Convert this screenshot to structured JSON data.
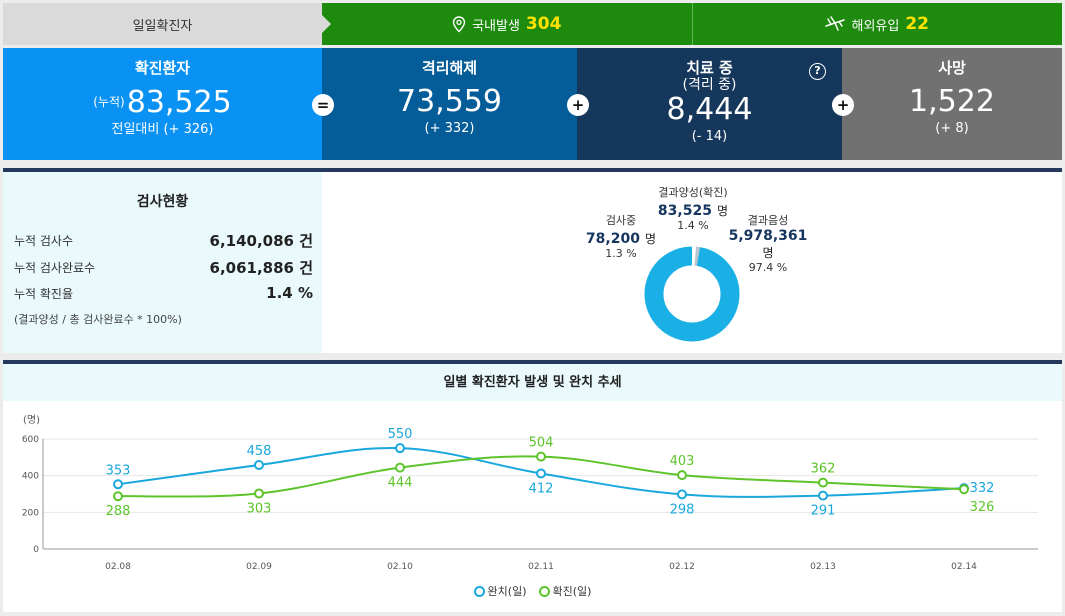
{
  "top": {
    "daily_label": "일일확진자",
    "domestic_label": "국내발생",
    "domestic_value": "304",
    "overseas_label": "해외유입",
    "overseas_value": "22"
  },
  "summary": {
    "confirmed": {
      "title": "확진환자",
      "prefix": "(누적)",
      "value": "83,525",
      "diff": "전일대비 (+ 326)"
    },
    "released": {
      "title": "격리해제",
      "value": "73,559",
      "diff": "(+ 332)"
    },
    "treating": {
      "title": "치료 중",
      "subtitle": "(격리 중)",
      "value": "8,444",
      "diff": "(- 14)"
    },
    "deaths": {
      "title": "사망",
      "value": "1,522",
      "diff": "(+ 8)"
    },
    "op_equals": "=",
    "op_plus": "+",
    "help_glyph": "?"
  },
  "tests": {
    "title": "검사현황",
    "rows": [
      {
        "label": "누적 검사수",
        "value": "6,140,086 건"
      },
      {
        "label": "누적 검사완료수",
        "value": "6,061,886 건"
      },
      {
        "label": "누적 확진율",
        "value": "1.4 %"
      }
    ],
    "note": "(결과양성 / 총 검사완료수 * 100%)",
    "donut": {
      "positive": {
        "label": "결과양성(확진)",
        "value": "83,525",
        "unit": "명",
        "pct": "1.4 %"
      },
      "testing": {
        "label": "검사중",
        "value": "78,200",
        "unit": "명",
        "pct": "1.3 %"
      },
      "negative": {
        "label": "결과음성",
        "value": "5,978,361",
        "unit": "명",
        "pct": "97.4 %"
      },
      "fractions": [
        0.014,
        0.013,
        0.973
      ]
    }
  },
  "trend": {
    "title": "일별 확진환자 발생 및 완치 추세",
    "legend_released": "완치(일)",
    "legend_confirmed": "확진(일)"
  },
  "chart_data": {
    "type": "line",
    "title": "일별 확진환자 발생 및 완치 추세",
    "ylabel": "(명)",
    "ylim": [
      0,
      600
    ],
    "yticks": [
      0,
      200,
      400,
      600
    ],
    "x": [
      "02.08",
      "02.09",
      "02.10",
      "02.11",
      "02.12",
      "02.13",
      "02.14"
    ],
    "series": [
      {
        "name": "완치(일)",
        "color": "#1aa7dd",
        "values": [
          353,
          458,
          550,
          412,
          298,
          291,
          332
        ]
      },
      {
        "name": "확진(일)",
        "color": "#5ec42b",
        "values": [
          288,
          303,
          444,
          504,
          403,
          362,
          326
        ]
      }
    ],
    "grid": true,
    "legend": "bottom"
  },
  "colors": {
    "green": "#1e8a0e",
    "yellow": "#ffe200",
    "blue": "#0992f4",
    "teal": "#045d99",
    "navy": "#14375b",
    "gray": "#717171",
    "donut": "#1ab0e6"
  }
}
